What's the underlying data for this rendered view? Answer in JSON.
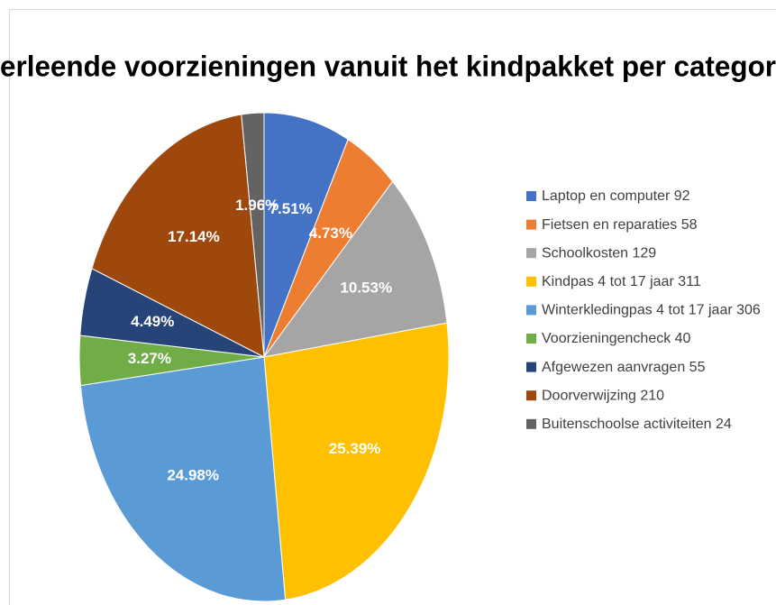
{
  "chart_data": {
    "type": "pie",
    "title": "erleende voorzieningen vanuit het kindpakket per categor",
    "categories": [
      "Laptop en computer 92",
      "Fietsen en reparaties 58",
      "Schoolkosten 129",
      "Kindpas 4 tot 17 jaar 311",
      "Winterkledingpas 4 tot 17 jaar 306",
      "Voorzieningencheck 40",
      "Afgewezen aanvragen 55",
      "Doorverwijzing 210",
      "Buitenschoolse activiteiten 24"
    ],
    "values": [
      7.51,
      4.73,
      10.53,
      25.39,
      24.98,
      3.27,
      4.49,
      17.14,
      1.96
    ],
    "value_labels": [
      "7.51%",
      "4.73%",
      "10.53%",
      "25.39%",
      "24.98%",
      "3.27%",
      "4.49%",
      "17.14%",
      "1.96%"
    ],
    "colors": [
      "#4472c4",
      "#ed7d31",
      "#a5a5a5",
      "#ffc000",
      "#5b9bd5",
      "#70ad47",
      "#264478",
      "#9e480e",
      "#636363"
    ],
    "legend": "right"
  }
}
